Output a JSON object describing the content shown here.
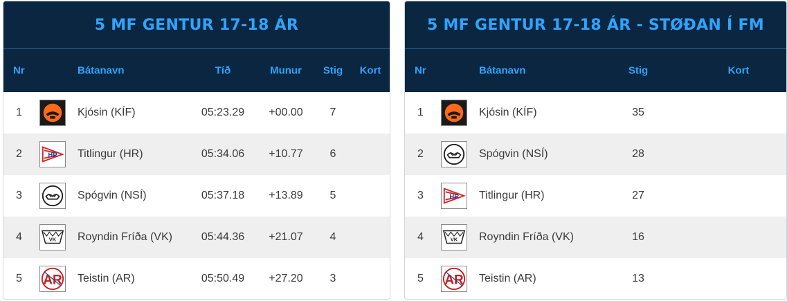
{
  "left": {
    "title": "5 MF GENTUR 17-18 ÁR",
    "headers": {
      "nr": "Nr",
      "boat": "Bátanavn",
      "time": "Tíð",
      "diff": "Munur",
      "points": "Stig",
      "map": "Kort"
    },
    "rows": [
      {
        "nr": "1",
        "boat": "Kjósin (KÍF)",
        "logo": "kif-logo",
        "time": "05:23.29",
        "diff": "+00.00",
        "points": "7"
      },
      {
        "nr": "2",
        "boat": "Titlingur (HR)",
        "logo": "hr-logo",
        "time": "05:34.06",
        "diff": "+10.77",
        "points": "6"
      },
      {
        "nr": "3",
        "boat": "Spógvin (NSÍ)",
        "logo": "nsi-logo",
        "time": "05:37.18",
        "diff": "+13.89",
        "points": "5"
      },
      {
        "nr": "4",
        "boat": "Royndin Fríða (VK)",
        "logo": "vk-logo",
        "time": "05:44.36",
        "diff": "+21.07",
        "points": "4"
      },
      {
        "nr": "5",
        "boat": "Teistin (AR)",
        "logo": "ar-logo",
        "time": "05:50.49",
        "diff": "+27.20",
        "points": "3"
      }
    ]
  },
  "right": {
    "title": "5 MF GENTUR 17-18 ÁR - STØÐAN Í FM",
    "headers": {
      "nr": "Nr",
      "boat": "Bátanavn",
      "points": "Stig",
      "map": "Kort"
    },
    "rows": [
      {
        "nr": "1",
        "boat": "Kjósin (KÍF)",
        "logo": "kif-logo",
        "points": "35"
      },
      {
        "nr": "2",
        "boat": "Spógvin (NSÍ)",
        "logo": "nsi-logo",
        "points": "28"
      },
      {
        "nr": "3",
        "boat": "Titlingur (HR)",
        "logo": "hr-logo",
        "points": "27"
      },
      {
        "nr": "4",
        "boat": "Royndin Fríða (VK)",
        "logo": "vk-logo",
        "points": "16"
      },
      {
        "nr": "5",
        "boat": "Teistin (AR)",
        "logo": "ar-logo",
        "points": "13"
      }
    ]
  },
  "colors": {
    "header_bg": "#0b2640",
    "header_text": "#2fa4ff",
    "row_alt": "#efefef",
    "text": "#3a3a3a"
  }
}
